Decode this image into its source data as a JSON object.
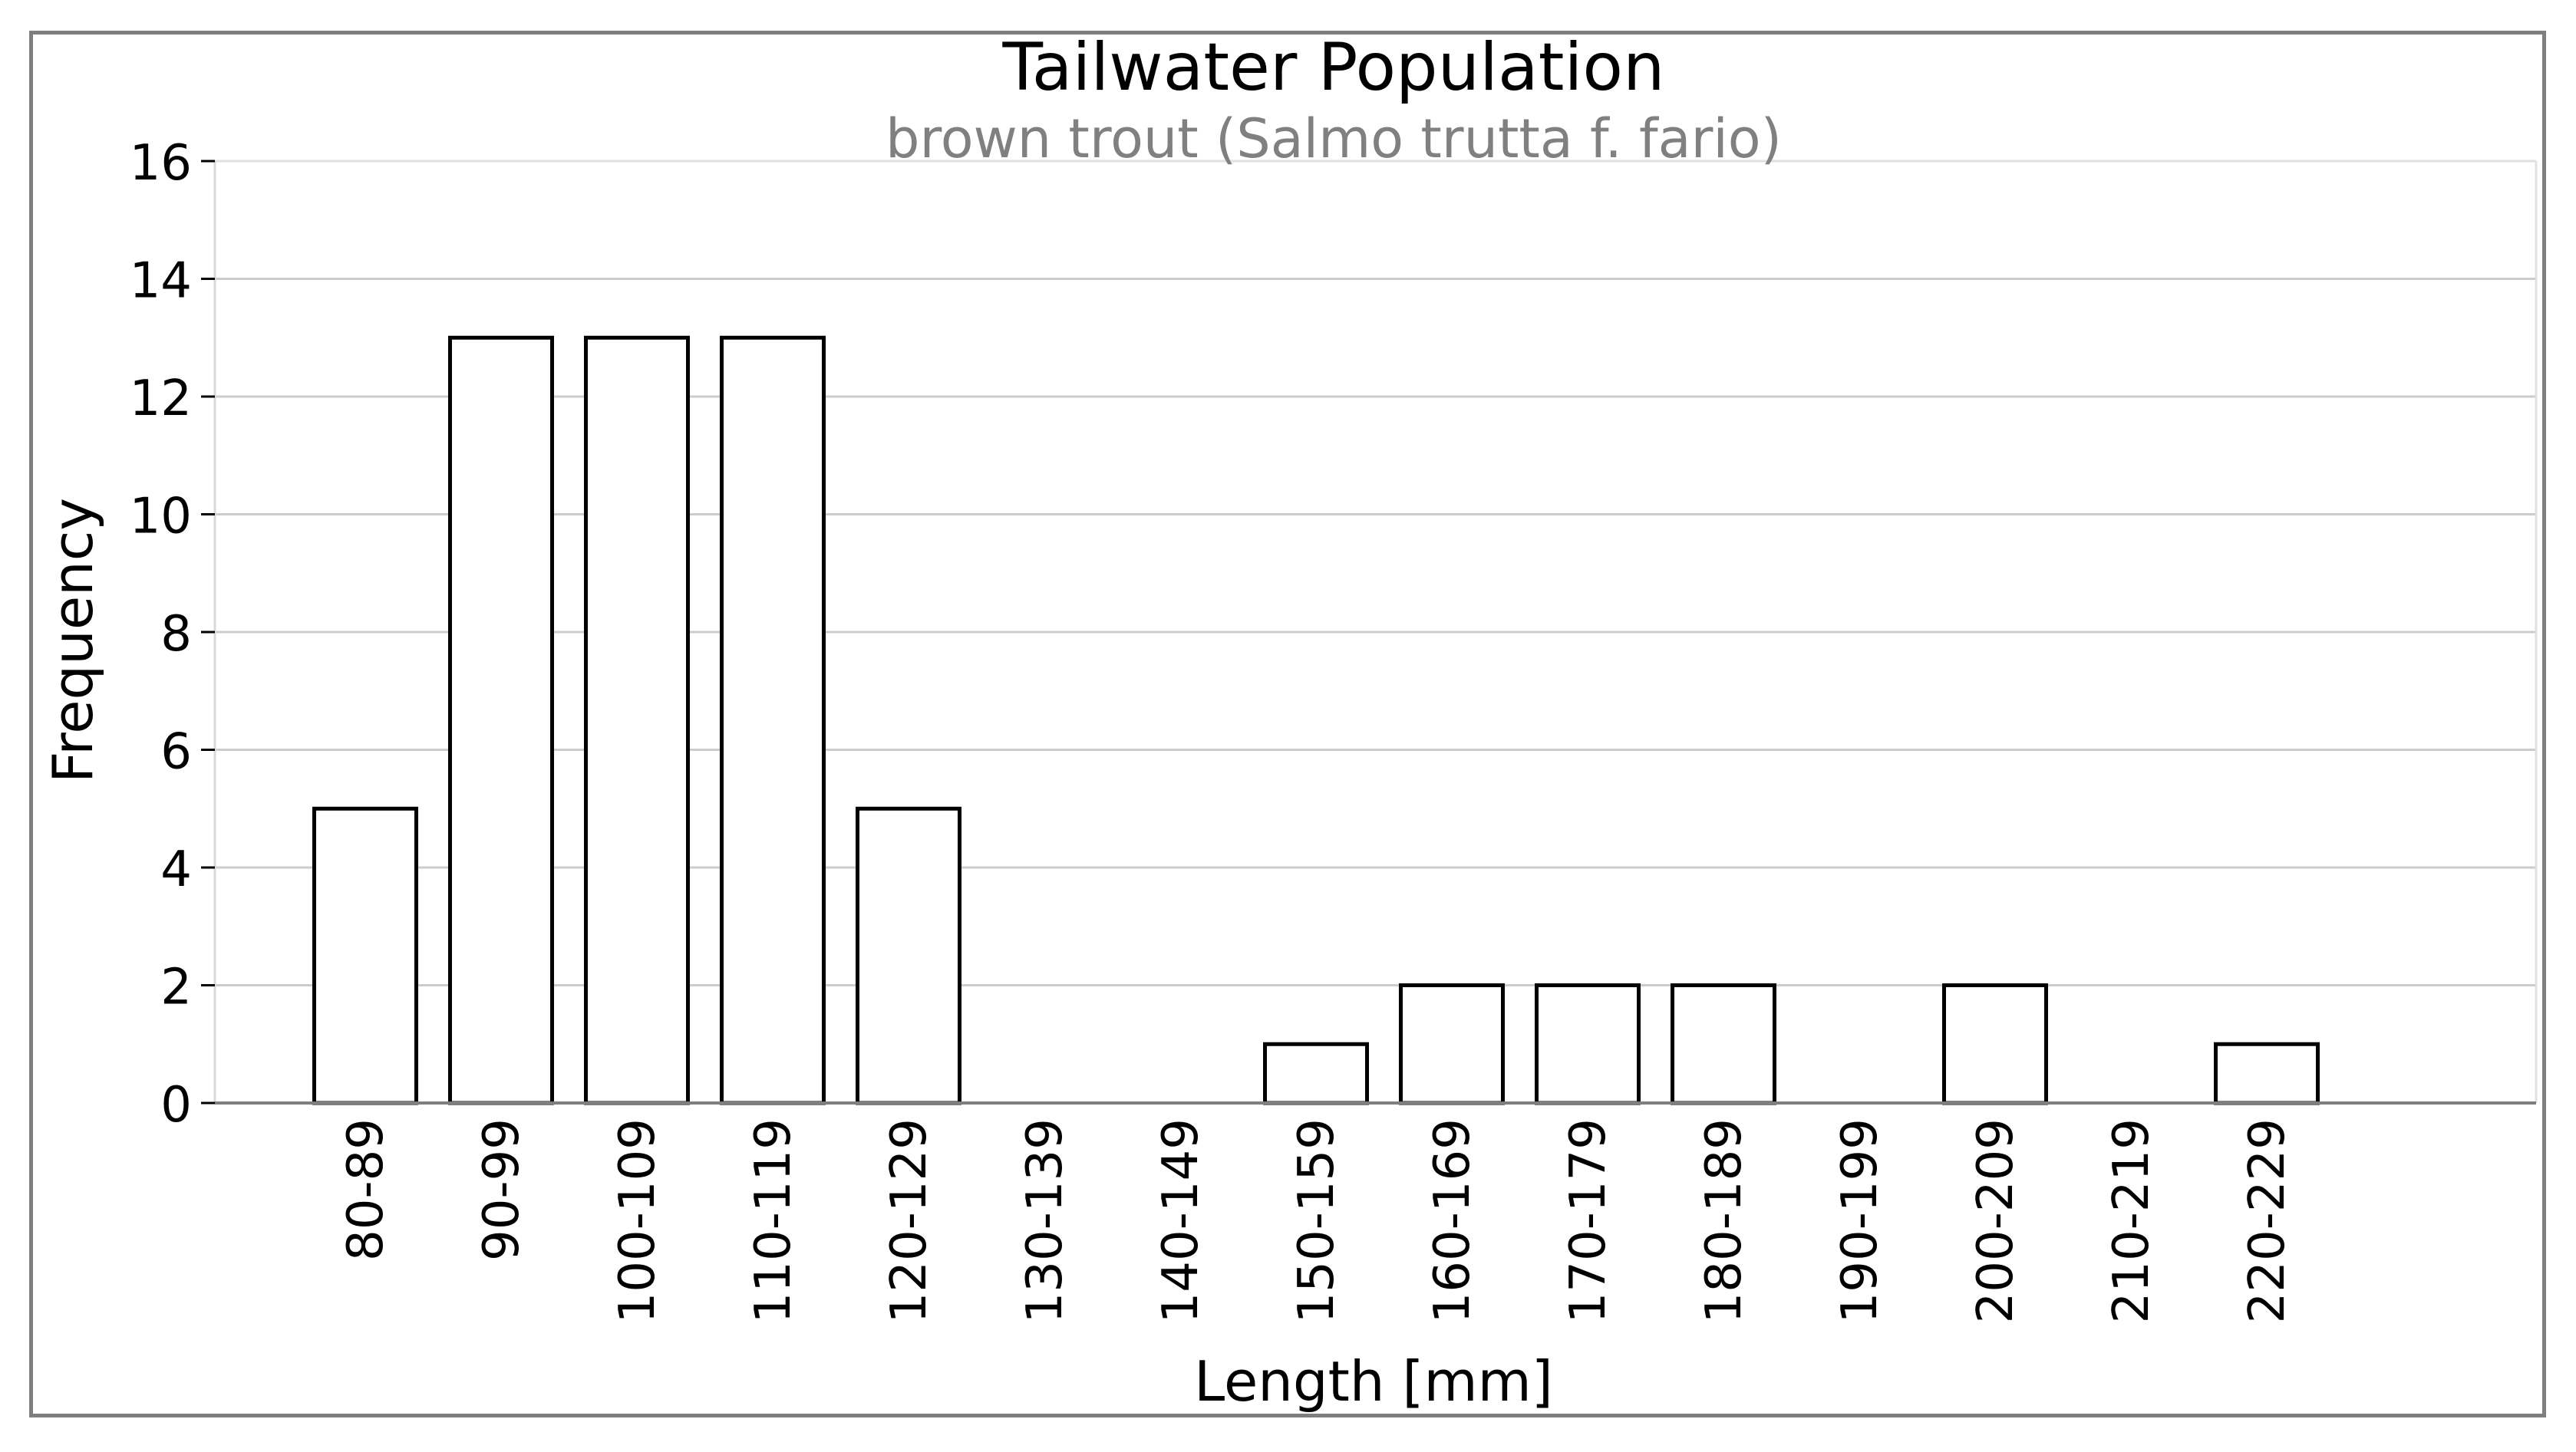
{
  "chart_data": {
    "type": "bar",
    "title": "Tailwater Population",
    "subtitle": "brown trout (Salmo trutta f. fario)",
    "xlabel": "Length [mm]",
    "ylabel": "Frequency",
    "categories": [
      "80-89",
      "90-99",
      "100-109",
      "110-119",
      "120-129",
      "130-139",
      "140-149",
      "150-159",
      "160-169",
      "170-179",
      "180-189",
      "190-199",
      "200-209",
      "210-219",
      "220-229"
    ],
    "values": [
      5,
      13,
      13,
      13,
      5,
      0,
      0,
      1,
      2,
      2,
      2,
      0,
      2,
      0,
      1
    ],
    "ylim": [
      0,
      16
    ],
    "yticks": [
      0,
      2,
      4,
      6,
      8,
      10,
      12,
      14,
      16
    ],
    "grid": "y",
    "legend": "none",
    "colors": {
      "bar_fill": "#ffffff",
      "bar_edge": "#000000",
      "title": "#000000",
      "subtitle": "#808080",
      "grid": "#cccccc",
      "frame": "#7f7f7f"
    }
  }
}
